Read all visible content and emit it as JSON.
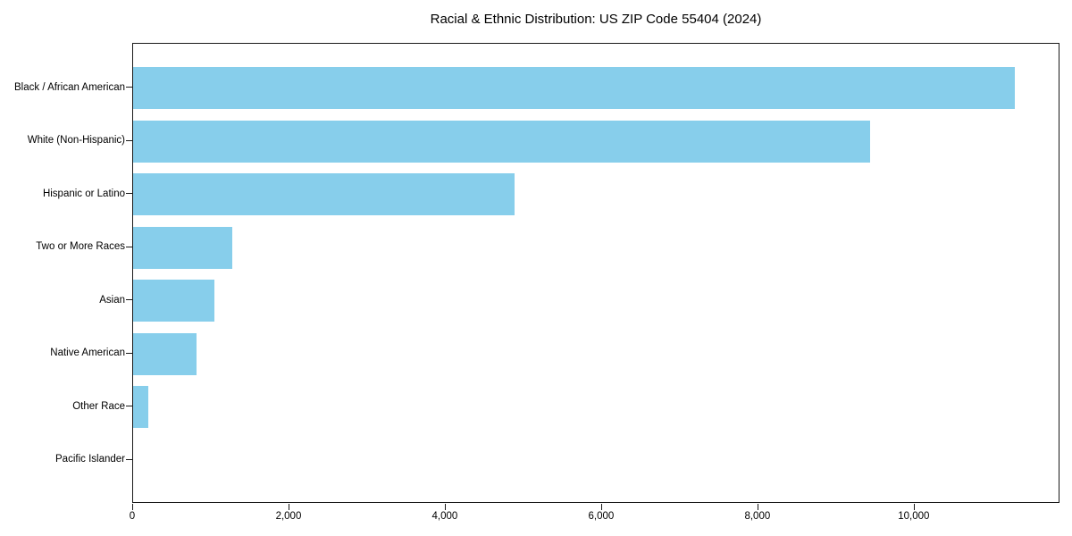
{
  "chart_data": {
    "type": "bar",
    "orientation": "horizontal",
    "title": "Racial & Ethnic Distribution: US ZIP Code 55404 (2024)",
    "categories": [
      "Black / African American",
      "White (Non-Hispanic)",
      "Hispanic or Latino",
      "Two or More Races",
      "Asian",
      "Native American",
      "Other Race",
      "Pacific Islander"
    ],
    "values": [
      11300,
      9450,
      4890,
      1270,
      1040,
      810,
      190,
      0
    ],
    "xlabel": "",
    "ylabel": "",
    "xlim": [
      0,
      11865
    ],
    "x_ticks": [
      0,
      2000,
      4000,
      6000,
      8000,
      10000
    ],
    "x_tick_labels": [
      "0",
      "2,000",
      "4,000",
      "6,000",
      "8,000",
      "10,000"
    ],
    "bar_color": "#87CEEB",
    "spine_color": "#1a1a1a",
    "grid": false,
    "legend": null
  }
}
